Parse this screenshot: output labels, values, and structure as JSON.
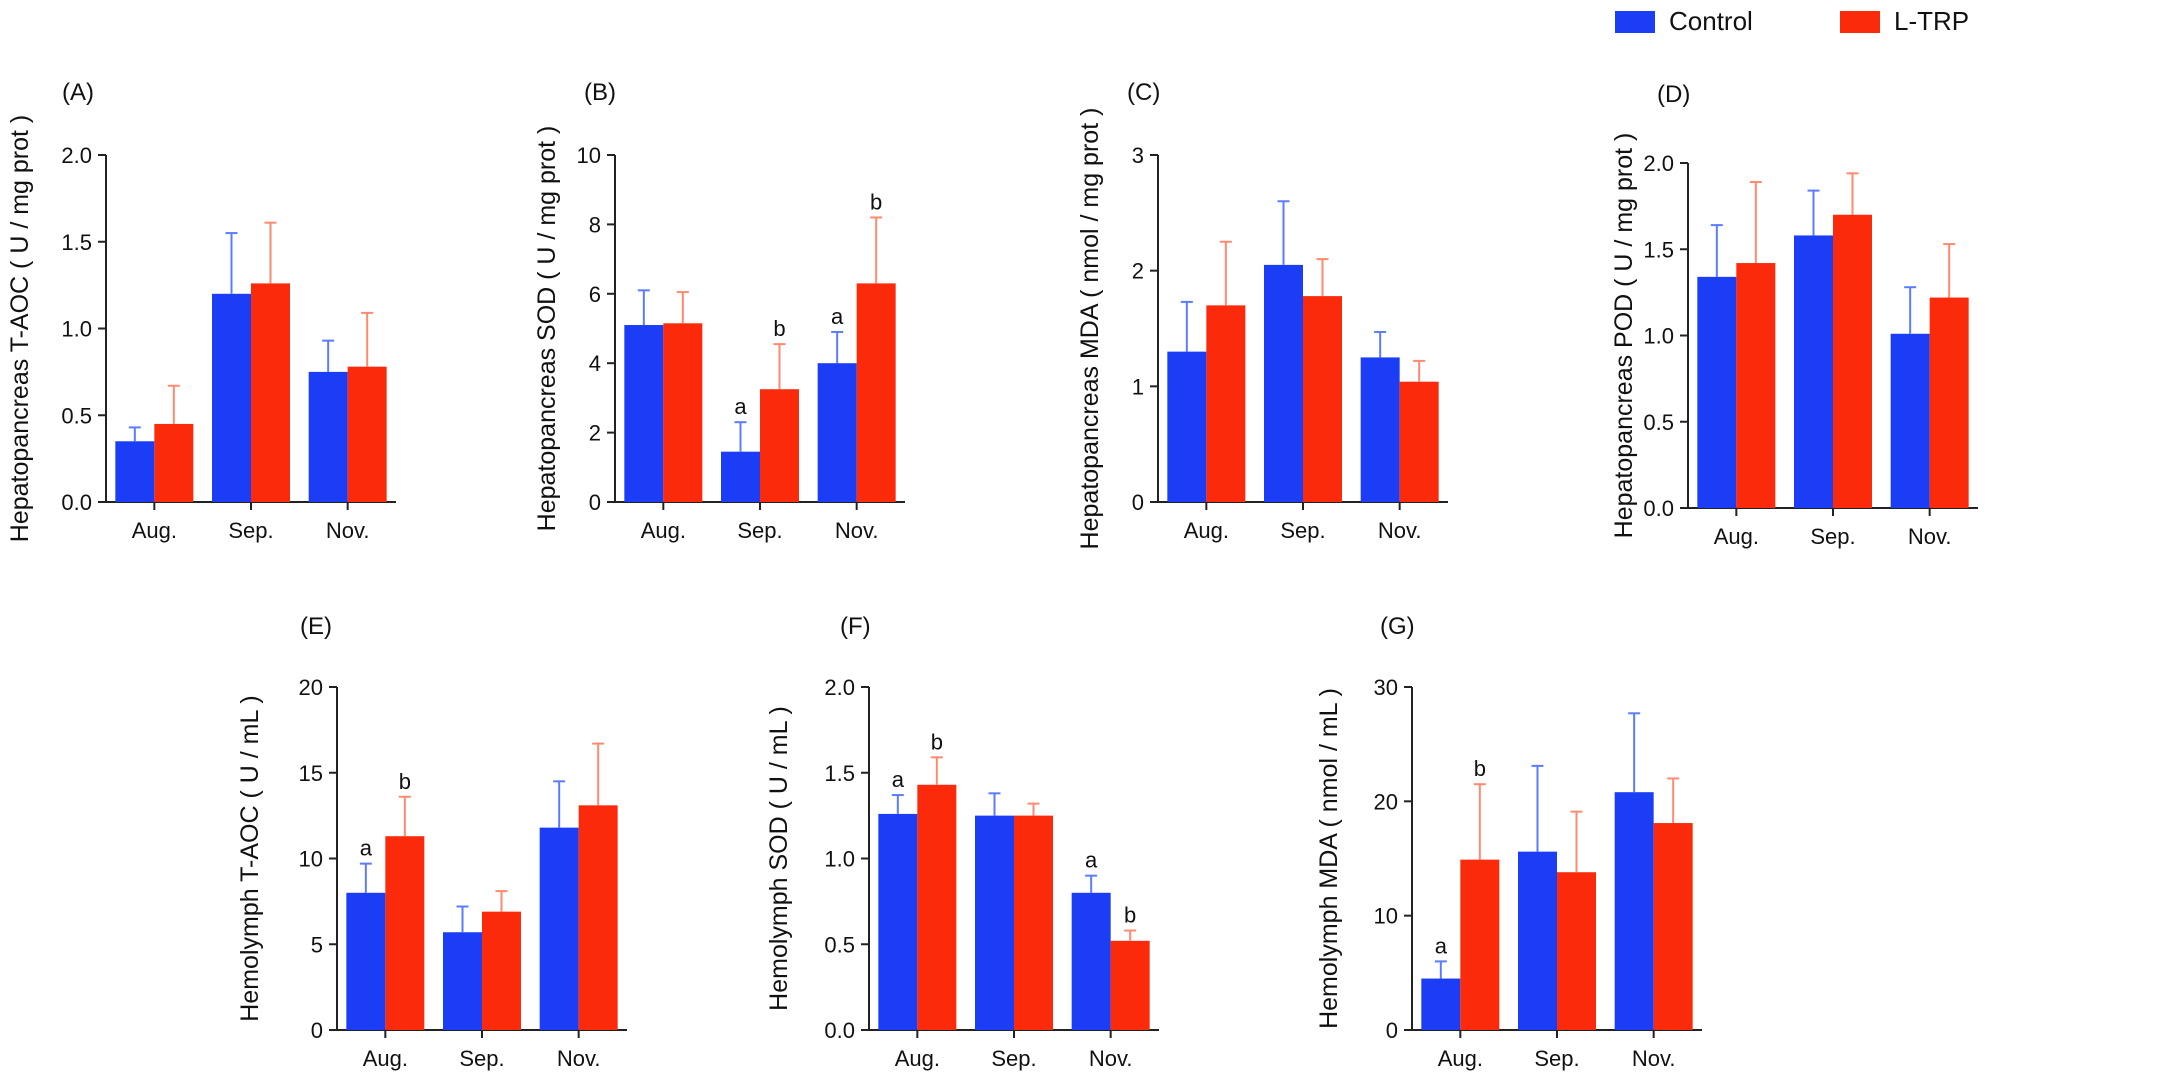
{
  "legend": [
    {
      "name": "Control",
      "color": "#1a3df5"
    },
    {
      "name": "L-TRP",
      "color": "#fa2a0b"
    }
  ],
  "chart_data": [
    {
      "panel": "(A)",
      "type": "bar",
      "ylabel": "Hepatopancreas T-AOC ( U / mg prot )",
      "categories": [
        "Aug.",
        "Sep.",
        "Nov."
      ],
      "ylim": [
        0,
        2.0
      ],
      "yticks": [
        "0.0",
        "0.5",
        "1.0",
        "1.5",
        "2.0"
      ],
      "series": [
        {
          "name": "Control",
          "values": [
            0.35,
            1.2,
            0.75
          ],
          "errors": [
            0.08,
            0.35,
            0.18
          ],
          "labels": [
            "",
            "",
            ""
          ]
        },
        {
          "name": "L-TRP",
          "values": [
            0.45,
            1.26,
            0.78
          ],
          "errors": [
            0.22,
            0.35,
            0.31
          ],
          "labels": [
            "",
            "",
            ""
          ]
        }
      ]
    },
    {
      "panel": "(B)",
      "type": "bar",
      "ylabel": "Hepatopancreas SOD ( U / mg prot )",
      "categories": [
        "Aug.",
        "Sep.",
        "Nov."
      ],
      "ylim": [
        0,
        10
      ],
      "yticks": [
        "0",
        "2",
        "4",
        "6",
        "8",
        "10"
      ],
      "series": [
        {
          "name": "Control",
          "values": [
            5.1,
            1.45,
            4.0
          ],
          "errors": [
            1.0,
            0.85,
            0.9
          ],
          "labels": [
            "",
            "a",
            "a"
          ]
        },
        {
          "name": "L-TRP",
          "values": [
            5.15,
            3.25,
            6.3
          ],
          "errors": [
            0.9,
            1.3,
            1.9
          ],
          "labels": [
            "",
            "b",
            "b"
          ]
        }
      ]
    },
    {
      "panel": "(C)",
      "type": "bar",
      "ylabel": "Hepatopancreas MDA ( nmol / mg prot )",
      "categories": [
        "Aug.",
        "Sep.",
        "Nov."
      ],
      "ylim": [
        0,
        3
      ],
      "yticks": [
        "0",
        "1",
        "2",
        "3"
      ],
      "series": [
        {
          "name": "Control",
          "values": [
            1.3,
            2.05,
            1.25
          ],
          "errors": [
            0.43,
            0.55,
            0.22
          ],
          "labels": [
            "",
            "",
            ""
          ]
        },
        {
          "name": "L-TRP",
          "values": [
            1.7,
            1.78,
            1.04
          ],
          "errors": [
            0.55,
            0.32,
            0.18
          ],
          "labels": [
            "",
            "",
            ""
          ]
        }
      ]
    },
    {
      "panel": "(D)",
      "type": "bar",
      "ylabel": "Hepatopancreas POD ( U / mg prot )",
      "categories": [
        "Aug.",
        "Sep.",
        "Nov."
      ],
      "ylim": [
        0,
        2.0
      ],
      "yticks": [
        "0.0",
        "0.5",
        "1.0",
        "1.5",
        "2.0"
      ],
      "series": [
        {
          "name": "Control",
          "values": [
            1.34,
            1.58,
            1.01
          ],
          "errors": [
            0.3,
            0.26,
            0.27
          ],
          "labels": [
            "",
            "",
            ""
          ]
        },
        {
          "name": "L-TRP",
          "values": [
            1.42,
            1.7,
            1.22
          ],
          "errors": [
            0.47,
            0.24,
            0.31
          ],
          "labels": [
            "",
            "",
            ""
          ]
        }
      ]
    },
    {
      "panel": "(E)",
      "type": "bar",
      "ylabel": "Hemolymph T-AOC ( U / mL )",
      "categories": [
        "Aug.",
        "Sep.",
        "Nov."
      ],
      "ylim": [
        0,
        20
      ],
      "yticks": [
        "0",
        "5",
        "10",
        "15",
        "20"
      ],
      "series": [
        {
          "name": "Control",
          "values": [
            8.0,
            5.7,
            11.8
          ],
          "errors": [
            1.7,
            1.5,
            2.7
          ],
          "labels": [
            "a",
            "",
            ""
          ]
        },
        {
          "name": "L-TRP",
          "values": [
            11.3,
            6.9,
            13.1
          ],
          "errors": [
            2.3,
            1.2,
            3.6
          ],
          "labels": [
            "b",
            "",
            ""
          ]
        }
      ]
    },
    {
      "panel": "(F)",
      "type": "bar",
      "ylabel": "Hemolymph SOD ( U / mL )",
      "categories": [
        "Aug.",
        "Sep.",
        "Nov."
      ],
      "ylim": [
        0,
        2.0
      ],
      "yticks": [
        "0.0",
        "0.5",
        "1.0",
        "1.5",
        "2.0"
      ],
      "series": [
        {
          "name": "Control",
          "values": [
            1.26,
            1.25,
            0.8
          ],
          "errors": [
            0.11,
            0.13,
            0.1
          ],
          "labels": [
            "a",
            "",
            "a"
          ]
        },
        {
          "name": "L-TRP",
          "values": [
            1.43,
            1.25,
            0.52
          ],
          "errors": [
            0.16,
            0.07,
            0.06
          ],
          "labels": [
            "b",
            "",
            "b"
          ]
        }
      ]
    },
    {
      "panel": "(G)",
      "type": "bar",
      "ylabel": "Hemolymph MDA ( nmol / mL )",
      "categories": [
        "Aug.",
        "Sep.",
        "Nov."
      ],
      "ylim": [
        0,
        30
      ],
      "yticks": [
        "0",
        "10",
        "20",
        "30"
      ],
      "series": [
        {
          "name": "Control",
          "values": [
            4.5,
            15.6,
            20.8
          ],
          "errors": [
            1.5,
            7.5,
            6.9
          ],
          "labels": [
            "a",
            "",
            ""
          ]
        },
        {
          "name": "L-TRP",
          "values": [
            14.9,
            13.8,
            18.1
          ],
          "errors": [
            6.6,
            5.3,
            3.9
          ],
          "labels": [
            "b",
            "",
            ""
          ]
        }
      ]
    }
  ]
}
